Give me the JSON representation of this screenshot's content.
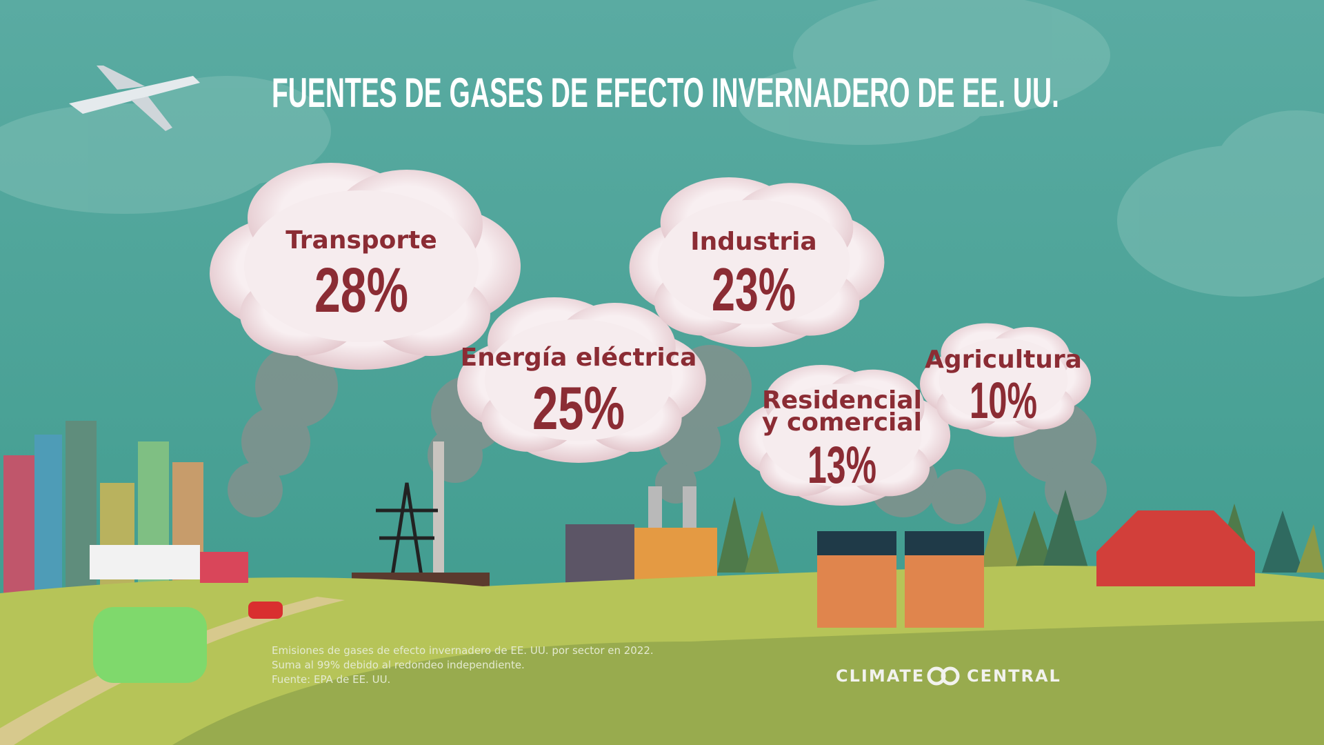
{
  "title": "FUENTES DE GASES DE EFECTO INVERNADERO DE EE. UU.",
  "sectors": [
    {
      "label": [
        "Transporte"
      ],
      "value": "28%"
    },
    {
      "label": [
        "Energía eléctrica"
      ],
      "value": "25%"
    },
    {
      "label": [
        "Industria"
      ],
      "value": "23%"
    },
    {
      "label": [
        "Residencial",
        "y comercial"
      ],
      "value": "13%"
    },
    {
      "label": [
        "Agricultura"
      ],
      "value": "10%"
    }
  ],
  "footnote": [
    "Emisiones de gases de efecto invernadero de EE. UU. por sector en 2022.",
    "Suma al 99% debido al redondeo independiente.",
    "Fuente: EPA de EE. UU."
  ],
  "logo": {
    "left": "CLIMATE",
    "right": "CENTRAL"
  }
}
